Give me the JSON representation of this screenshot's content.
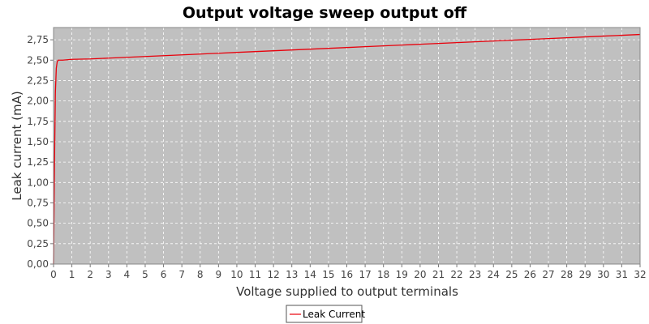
{
  "chart_data": {
    "type": "line",
    "title": "Output voltage sweep output off",
    "xlabel": "Voltage supplied to output terminals",
    "ylabel": "Leak current (mA)",
    "xlim": [
      0,
      32
    ],
    "ylim": [
      0,
      2.9
    ],
    "xticks": [
      0,
      1,
      2,
      3,
      4,
      5,
      6,
      7,
      8,
      9,
      10,
      11,
      12,
      13,
      14,
      15,
      16,
      17,
      18,
      19,
      20,
      21,
      22,
      23,
      24,
      25,
      26,
      27,
      28,
      29,
      30,
      31,
      32
    ],
    "xtick_labels": [
      "0",
      "1",
      "2",
      "3",
      "4",
      "5",
      "6",
      "7",
      "8",
      "9",
      "10",
      "11",
      "12",
      "13",
      "14",
      "15",
      "16",
      "17",
      "18",
      "19",
      "20",
      "21",
      "22",
      "23",
      "24",
      "25",
      "26",
      "27",
      "28",
      "29",
      "30",
      "31",
      "32"
    ],
    "yticks": [
      0,
      0.25,
      0.5,
      0.75,
      1.0,
      1.25,
      1.5,
      1.75,
      2.0,
      2.25,
      2.5,
      2.75
    ],
    "ytick_labels": [
      "0,00",
      "0,25",
      "0,50",
      "0,75",
      "1,00",
      "1,25",
      "1,50",
      "1,75",
      "2,00",
      "2,25",
      "2,50",
      "2,75"
    ],
    "grid": true,
    "legend_position": "bottom-center",
    "background_color": "#c0c0c0",
    "series": [
      {
        "name": "Leak Current",
        "color": "#e8000b",
        "x": [
          0,
          0.05,
          0.1,
          0.15,
          0.2,
          0.25,
          0.5,
          1,
          2,
          3,
          4,
          5,
          6,
          7,
          8,
          9,
          10,
          11,
          12,
          13,
          14,
          15,
          16,
          17,
          18,
          19,
          20,
          21,
          22,
          23,
          24,
          25,
          26,
          27,
          28,
          29,
          30,
          31,
          32
        ],
        "y": [
          0.0,
          1.2,
          2.1,
          2.4,
          2.48,
          2.5,
          2.5,
          2.51,
          2.515,
          2.525,
          2.535,
          2.545,
          2.555,
          2.565,
          2.575,
          2.585,
          2.595,
          2.605,
          2.615,
          2.625,
          2.635,
          2.645,
          2.655,
          2.665,
          2.675,
          2.685,
          2.695,
          2.705,
          2.715,
          2.725,
          2.735,
          2.745,
          2.755,
          2.765,
          2.775,
          2.785,
          2.795,
          2.805,
          2.815
        ]
      }
    ]
  }
}
